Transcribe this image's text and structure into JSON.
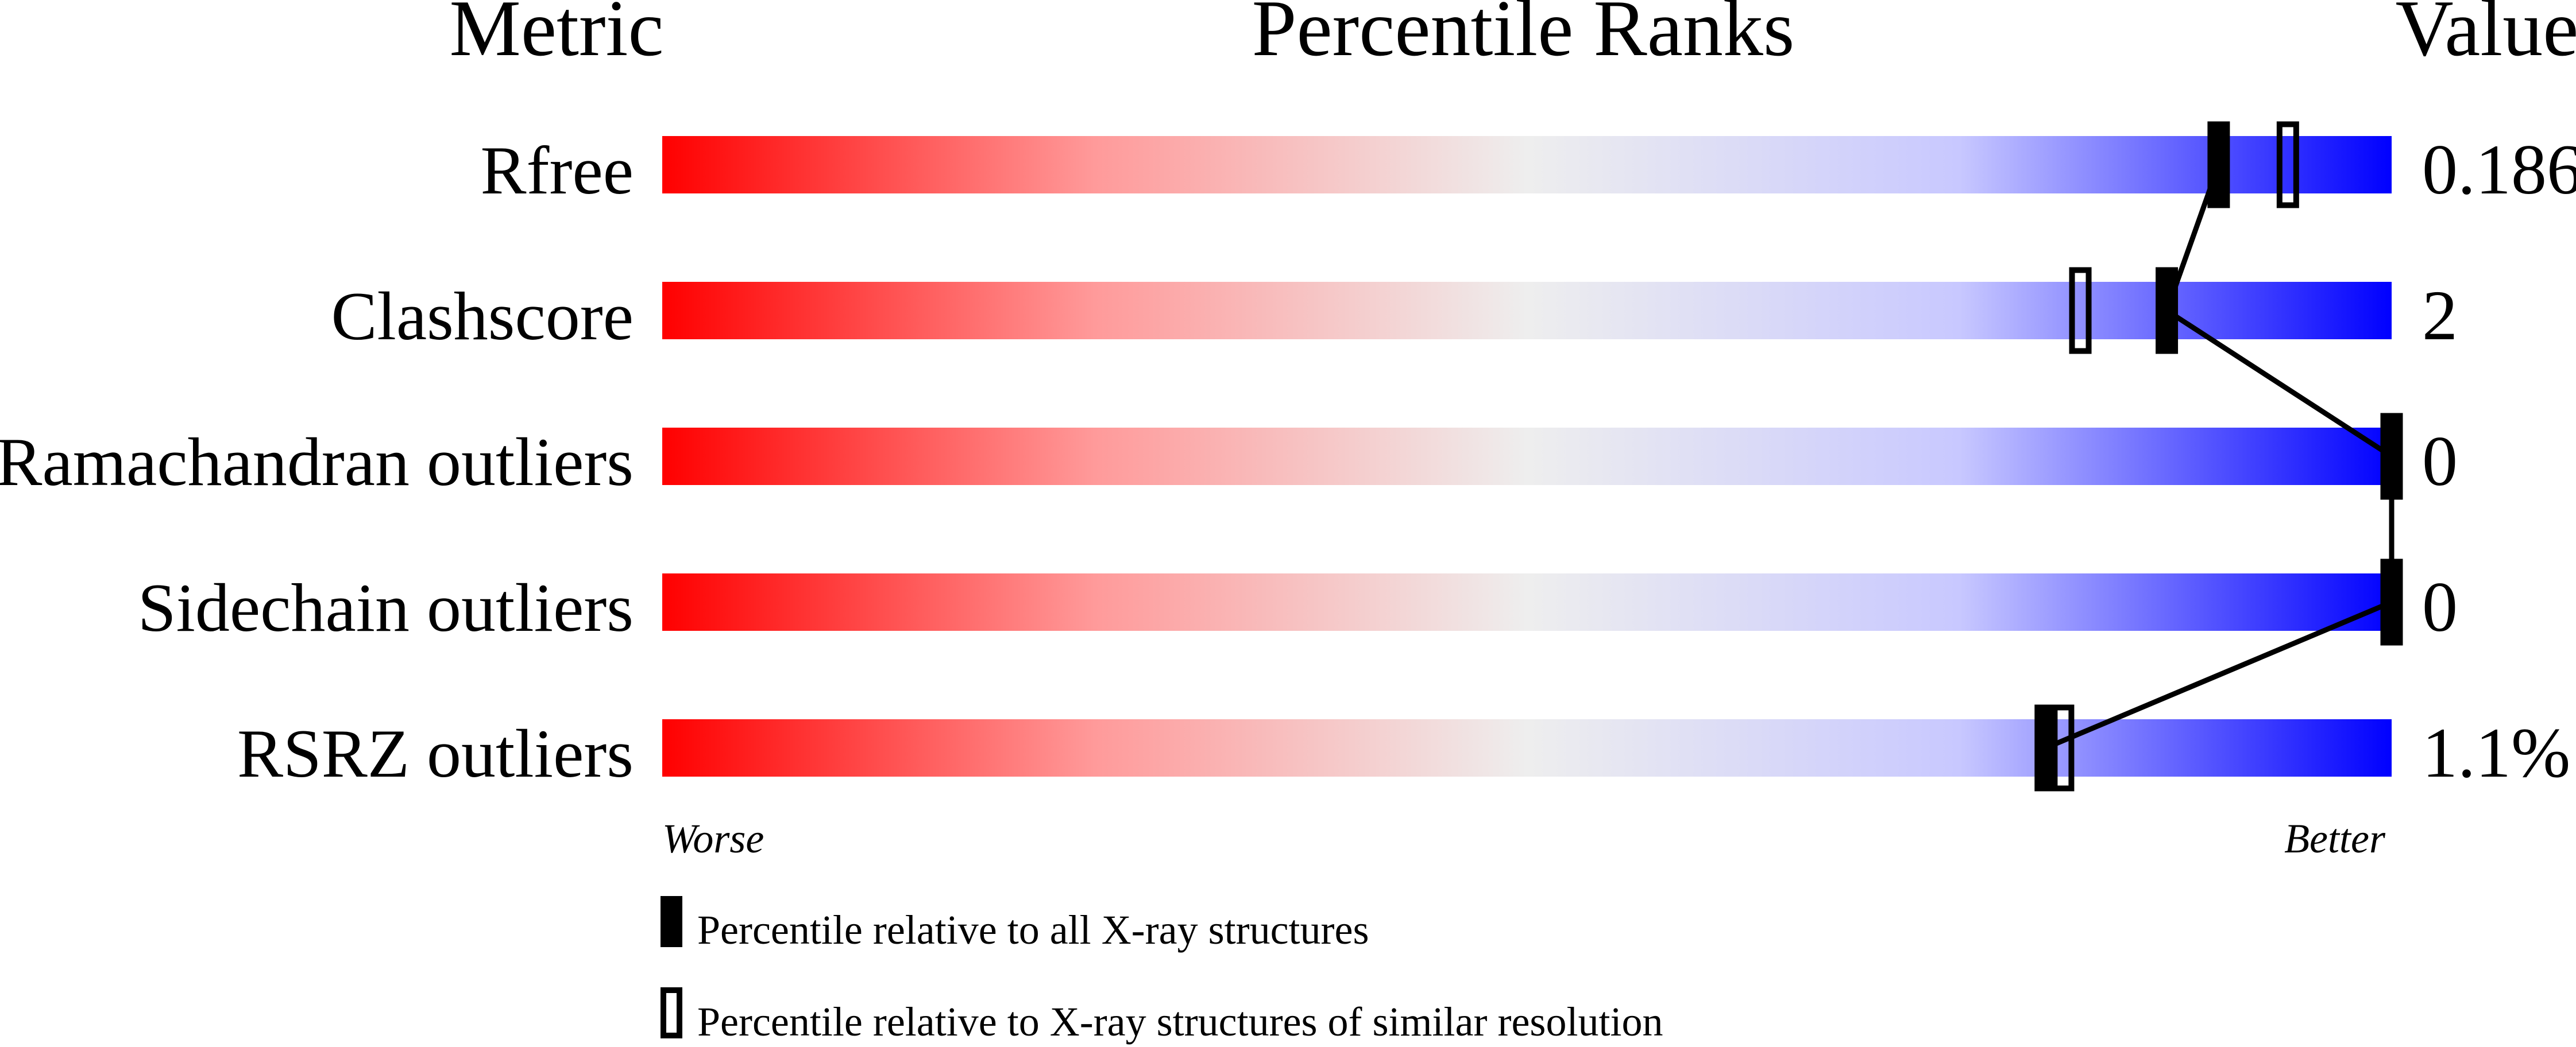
{
  "chart_data": {
    "type": "bar",
    "headers": {
      "metric": "Metric",
      "ranks": "Percentile Ranks",
      "value": "Value"
    },
    "xlim": [
      0,
      100
    ],
    "axis_labels": {
      "left": "Worse",
      "right": "Better"
    },
    "gradient_colors": [
      "#ff0000",
      "#eeeeee",
      "#0000ff"
    ],
    "rows": [
      {
        "metric": "Rfree",
        "value": "0.186",
        "percentile_all": 90,
        "percentile_similar": 94
      },
      {
        "metric": "Clashscore",
        "value": "2",
        "percentile_all": 87,
        "percentile_similar": 82
      },
      {
        "metric": "Ramachandran outliers",
        "value": "0",
        "percentile_all": 100,
        "percentile_similar": null
      },
      {
        "metric": "Sidechain outliers",
        "value": "0",
        "percentile_all": 100,
        "percentile_similar": null
      },
      {
        "metric": "RSRZ outliers",
        "value": "1.1%",
        "percentile_all": 80,
        "percentile_similar": 81
      }
    ],
    "legend": [
      {
        "marker": "filled",
        "label": "Percentile relative to all X-ray structures"
      },
      {
        "marker": "open",
        "label": "Percentile relative to X-ray structures of similar resolution"
      }
    ]
  }
}
